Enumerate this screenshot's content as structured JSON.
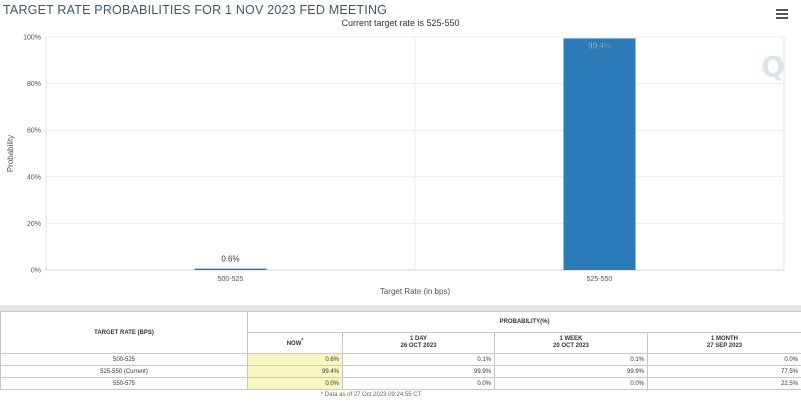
{
  "header": {
    "title": "TARGET RATE PROBABILITIES FOR 1 NOV 2023 FED MEETING",
    "subtitle": "Current target rate is 525-550"
  },
  "watermark": "Q",
  "chart_data": {
    "type": "bar",
    "categories": [
      "500-525",
      "525-550"
    ],
    "values": [
      0.6,
      99.4
    ],
    "value_labels": [
      "0.6%",
      "99.4%"
    ],
    "xlabel": "Target Rate (in bps)",
    "ylabel": "Probability",
    "ylim": [
      0,
      100
    ],
    "yticks": [
      "0%",
      "20%",
      "40%",
      "60%",
      "80%",
      "100%"
    ],
    "bar_color": "#2b7bb9",
    "grid": true,
    "legend": false
  },
  "table": {
    "rate_header": "TARGET RATE (BPS)",
    "prob_header": "PROBABILITY(%)",
    "columns": [
      {
        "name": "NOW",
        "marker": "*",
        "date": ""
      },
      {
        "name": "1 DAY",
        "marker": "",
        "date": "26 OCT 2023"
      },
      {
        "name": "1 WEEK",
        "marker": "",
        "date": "20 OCT 2023"
      },
      {
        "name": "1 MONTH",
        "marker": "",
        "date": "27 SEP 2023"
      }
    ],
    "rows": [
      {
        "rate": "500-525",
        "values": [
          "0.6%",
          "0.1%",
          "0.1%",
          "0.0%"
        ]
      },
      {
        "rate": "525-550 (Current)",
        "values": [
          "99.4%",
          "99.9%",
          "99.9%",
          "77.5%"
        ]
      },
      {
        "rate": "550-575",
        "values": [
          "0.0%",
          "0.0%",
          "0.0%",
          "22.5%"
        ]
      }
    ],
    "footnote": "* Data as of 27 Oct 2023 09:24:55 CT"
  }
}
